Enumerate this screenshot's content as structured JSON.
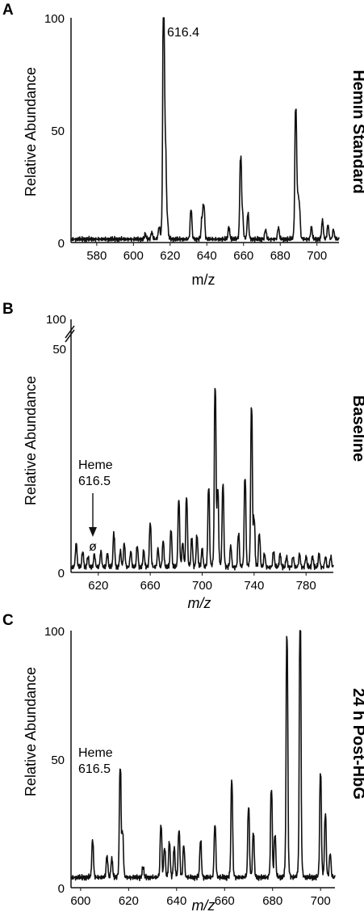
{
  "colors": {
    "line": "#111111",
    "background": "#ffffff"
  },
  "chart_data": [
    {
      "type": "line",
      "panel_label": "A",
      "side_title": "Hemin Standard",
      "xlabel": "m/z",
      "ylabel": "Relative Abundance",
      "xlim": [
        566,
        712
      ],
      "ylim": [
        0,
        100
      ],
      "xticks": [
        580,
        600,
        620,
        640,
        660,
        680,
        700
      ],
      "yticks": [
        0,
        50,
        100
      ],
      "grid": false,
      "peak_label": {
        "text": "616.4",
        "x": 616.4,
        "y": 100
      },
      "peaks": [
        {
          "x": 606.5,
          "y": 2
        },
        {
          "x": 610,
          "y": 3
        },
        {
          "x": 614,
          "y": 5
        },
        {
          "x": 616.4,
          "y": 100
        },
        {
          "x": 617.4,
          "y": 38
        },
        {
          "x": 618.4,
          "y": 8
        },
        {
          "x": 631.4,
          "y": 13
        },
        {
          "x": 637.4,
          "y": 9
        },
        {
          "x": 638.4,
          "y": 14
        },
        {
          "x": 652,
          "y": 5
        },
        {
          "x": 658.4,
          "y": 35
        },
        {
          "x": 659.4,
          "y": 10
        },
        {
          "x": 662.4,
          "y": 11
        },
        {
          "x": 672,
          "y": 4
        },
        {
          "x": 679,
          "y": 5
        },
        {
          "x": 688.4,
          "y": 56
        },
        {
          "x": 689.4,
          "y": 16
        },
        {
          "x": 690.4,
          "y": 14
        },
        {
          "x": 697,
          "y": 5
        },
        {
          "x": 703,
          "y": 8
        },
        {
          "x": 706,
          "y": 6
        },
        {
          "x": 709,
          "y": 4
        }
      ],
      "baseline": 1.5
    },
    {
      "type": "line",
      "panel_label": "B",
      "side_title": "Baseline",
      "xlabel": "m/z",
      "ylabel": "Relative Abundance",
      "xlim": [
        599,
        801
      ],
      "ylim": [
        0,
        100
      ],
      "axis_break": "y",
      "break_ticks": [
        "50",
        "100"
      ],
      "xticks": [
        620,
        660,
        700,
        740,
        780
      ],
      "yticks": [
        0
      ],
      "grid": false,
      "peak_label": {
        "text": "Heme\n616.5",
        "x": 616.5,
        "y": 3
      },
      "no_peak_symbol": "ø",
      "peaks": [
        {
          "x": 603,
          "y": 9
        },
        {
          "x": 608,
          "y": 6
        },
        {
          "x": 612,
          "y": 4
        },
        {
          "x": 617,
          "y": 5
        },
        {
          "x": 622,
          "y": 6
        },
        {
          "x": 627,
          "y": 5
        },
        {
          "x": 632,
          "y": 13
        },
        {
          "x": 637,
          "y": 6
        },
        {
          "x": 640,
          "y": 9
        },
        {
          "x": 645,
          "y": 6
        },
        {
          "x": 650,
          "y": 8
        },
        {
          "x": 655,
          "y": 6
        },
        {
          "x": 660,
          "y": 17
        },
        {
          "x": 666,
          "y": 7
        },
        {
          "x": 670,
          "y": 10
        },
        {
          "x": 676,
          "y": 14
        },
        {
          "x": 682,
          "y": 26
        },
        {
          "x": 685,
          "y": 9
        },
        {
          "x": 688,
          "y": 27
        },
        {
          "x": 692,
          "y": 11
        },
        {
          "x": 696,
          "y": 12
        },
        {
          "x": 700,
          "y": 7
        },
        {
          "x": 705,
          "y": 31
        },
        {
          "x": 710,
          "y": 70
        },
        {
          "x": 712,
          "y": 29
        },
        {
          "x": 716,
          "y": 32
        },
        {
          "x": 722,
          "y": 8
        },
        {
          "x": 728,
          "y": 13
        },
        {
          "x": 733,
          "y": 35
        },
        {
          "x": 738,
          "y": 62
        },
        {
          "x": 740,
          "y": 18
        },
        {
          "x": 744,
          "y": 13
        },
        {
          "x": 748,
          "y": 5
        },
        {
          "x": 755,
          "y": 6
        },
        {
          "x": 760,
          "y": 5
        },
        {
          "x": 765,
          "y": 4
        },
        {
          "x": 770,
          "y": 4
        },
        {
          "x": 775,
          "y": 5
        },
        {
          "x": 780,
          "y": 4
        },
        {
          "x": 785,
          "y": 4
        },
        {
          "x": 790,
          "y": 5
        },
        {
          "x": 795,
          "y": 4
        },
        {
          "x": 799,
          "y": 4
        }
      ],
      "baseline": 2
    },
    {
      "type": "line",
      "panel_label": "C",
      "side_title": "24 h Post-HbG",
      "xlabel": "m/z",
      "ylabel": "Relative Abundance",
      "xlim": [
        596,
        706
      ],
      "ylim": [
        0,
        100
      ],
      "xticks": [
        600,
        620,
        640,
        660,
        680,
        700
      ],
      "yticks": [
        0,
        50,
        100
      ],
      "grid": false,
      "peak_label": {
        "text": "Heme\n616.5",
        "x": 616.5,
        "y": 44
      },
      "peaks": [
        {
          "x": 605,
          "y": 14
        },
        {
          "x": 611,
          "y": 8
        },
        {
          "x": 613,
          "y": 7
        },
        {
          "x": 616.5,
          "y": 42
        },
        {
          "x": 617.5,
          "y": 16
        },
        {
          "x": 626,
          "y": 4
        },
        {
          "x": 633.5,
          "y": 20
        },
        {
          "x": 635,
          "y": 11
        },
        {
          "x": 637,
          "y": 13
        },
        {
          "x": 639,
          "y": 11
        },
        {
          "x": 641,
          "y": 18
        },
        {
          "x": 643,
          "y": 12
        },
        {
          "x": 650,
          "y": 14
        },
        {
          "x": 656,
          "y": 20
        },
        {
          "x": 663,
          "y": 37
        },
        {
          "x": 670,
          "y": 27
        },
        {
          "x": 672,
          "y": 17
        },
        {
          "x": 679.5,
          "y": 34
        },
        {
          "x": 681,
          "y": 16
        },
        {
          "x": 686,
          "y": 93
        },
        {
          "x": 691.5,
          "y": 100
        },
        {
          "x": 700,
          "y": 40
        },
        {
          "x": 702,
          "y": 24
        },
        {
          "x": 704,
          "y": 9
        }
      ],
      "baseline": 4
    }
  ]
}
